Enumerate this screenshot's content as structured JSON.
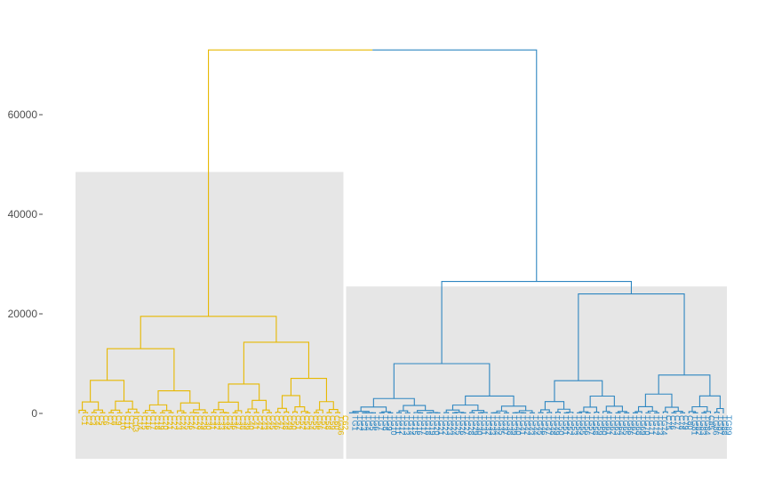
{
  "chart_data": {
    "type": "dendrogram",
    "title": "",
    "xlabel": "",
    "ylabel": "",
    "ylim": [
      -8000,
      77000
    ],
    "y_ticks": [
      {
        "value": 0,
        "label": "0"
      },
      {
        "value": 20000,
        "label": "20000"
      },
      {
        "value": 40000,
        "label": "40000"
      },
      {
        "value": 60000,
        "label": "60000"
      }
    ],
    "colors": {
      "cluster_1": "#E7B800",
      "cluster_2": "#2E86C1",
      "box_fill": "#E6E6E6",
      "axis": "#4d4d4d"
    },
    "root_height": 73000,
    "clusters": [
      {
        "name": "cluster-1",
        "color_key": "cluster_1",
        "merge_height": 19500,
        "box_top": 48500,
        "sub_merges": [
          {
            "height": 13000,
            "children": [
              10200,
              7000
            ]
          },
          {
            "height": 14300,
            "children": [
              8800,
              10200
            ]
          }
        ],
        "leaf_count": 62,
        "leaves": [
          "C1",
          "C2",
          "C3",
          "C4",
          "C5",
          "C6",
          "C7",
          "C8",
          "C9",
          "C10",
          "C11",
          "C12",
          "IC13",
          "C14",
          "C15",
          "C16",
          "C17",
          "C18",
          "C19",
          "C20",
          "C21",
          "C22",
          "C23",
          "C24",
          "C25",
          "C26",
          "C27",
          "C28",
          "C29",
          "C30",
          "C31",
          "C32",
          "C33",
          "C34",
          "C35",
          "C36",
          "C37",
          "C38",
          "C39",
          "C40",
          "C41",
          "C42",
          "C43",
          "C44",
          "C45",
          "C46",
          "C47",
          "C48",
          "C49",
          "C50",
          "C51",
          "C52",
          "C53",
          "C54",
          "C55",
          "C56",
          "C57",
          "C58",
          "C59",
          "C60",
          "TG36",
          "C62"
        ]
      },
      {
        "name": "cluster-2",
        "color_key": "cluster_2",
        "merge_height": 26500,
        "box_top": 25500,
        "sub_merges": [
          {
            "height": 10000,
            "children": [
              4200,
              4800
            ]
          },
          {
            "height": 24000,
            "children": [
              10200,
              14500
            ]
          }
        ],
        "leaf_count": 88,
        "leaves": [
          "TG1",
          "TG2",
          "TG3",
          "TG4",
          "TG5",
          "TG6",
          "TG7",
          "TG8",
          "TG9",
          "TG10",
          "TG11",
          "TG12",
          "TG13",
          "TG14",
          "TG15",
          "TG16",
          "TG17",
          "TG18",
          "TG19",
          "TG20",
          "TG21",
          "TG22",
          "TG23",
          "TG24",
          "TG25",
          "TG26",
          "TG27",
          "TG28",
          "TG29",
          "TG30",
          "TG31",
          "TG32",
          "TG33",
          "TG34",
          "TG35",
          "TG37",
          "TG38",
          "TG39",
          "TG40",
          "TG41",
          "TG42",
          "TG43",
          "TG44",
          "TG45",
          "TG46",
          "TG47",
          "TG48",
          "TG49",
          "TG50",
          "TG51",
          "TG52",
          "TG53",
          "TG54",
          "TG55",
          "TG56",
          "TG57",
          "TG58",
          "TG59",
          "TG60",
          "TG61",
          "TG62",
          "TG63",
          "TG64",
          "TG65",
          "TG66",
          "TG67",
          "TG68",
          "TG69",
          "TG70",
          "TG71",
          "TG72",
          "TG73",
          "TG74",
          "C75",
          "C76",
          "C77",
          "C78",
          "C79",
          "C80",
          "TG81",
          "TG82",
          "TG83",
          "TG84",
          "C85",
          "TG86",
          "TG87",
          "TG88",
          "TG89"
        ]
      }
    ]
  }
}
